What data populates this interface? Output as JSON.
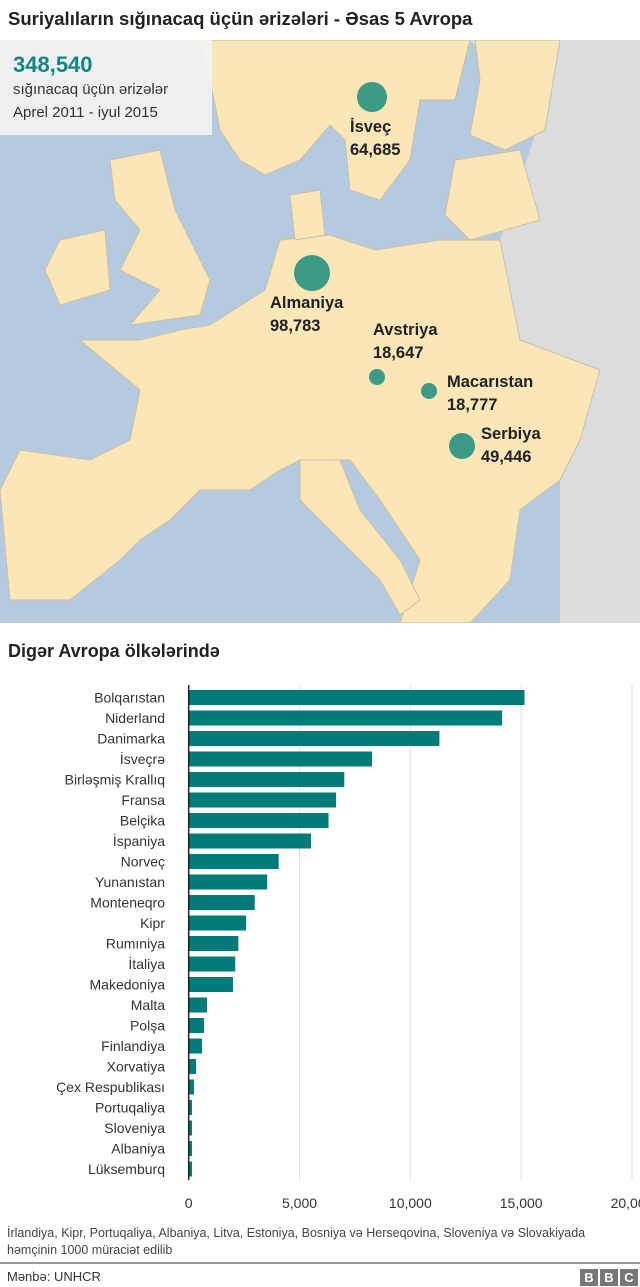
{
  "title": "Suriyalıların sığınacaq üçün ərizələri - Əsas 5 Avropa",
  "info": {
    "total": "348,540",
    "line1": "sığınacaq üçün ərizələr",
    "line2": "Aprel 2011 - iyul 2015"
  },
  "map_markers": [
    {
      "name": "İsveç",
      "value": "64,685",
      "count": 64685
    },
    {
      "name": "Almaniya",
      "value": "98,783",
      "count": 98783
    },
    {
      "name": "Avstriya",
      "value": "18,647",
      "count": 18647
    },
    {
      "name": "Macarıstan",
      "value": "18,777",
      "count": 18777
    },
    {
      "name": "Serbiya",
      "value": "49,446",
      "count": 49446
    }
  ],
  "colors": {
    "bar": "#007b77",
    "marker": "#3c9a85",
    "land": "#fbe6b8",
    "sea": "#b6cadf",
    "other": "#dcdcdc"
  },
  "section_title": "Digər Avropa ölkələrində",
  "chart_data": {
    "type": "bar",
    "orientation": "horizontal",
    "title": "Digər Avropa ölkələrində",
    "xlabel": "",
    "ylabel": "",
    "xlim": [
      0,
      20000
    ],
    "grid": true,
    "xticks": [
      "0",
      "5,000",
      "10,000",
      "15,000",
      "20,000"
    ],
    "categories": [
      "Bolqarıstan",
      "Niderland",
      "Danimarka",
      "İsveçrə",
      "Birləşmiş Krallıq",
      "Fransa",
      "Belçika",
      "İspaniya",
      "Norveç",
      "Yunanıstan",
      "Monteneqro",
      "Kipr",
      "Rumıniya",
      "İtaliya",
      "Makedoniya",
      "Malta",
      "Polşa",
      "Finlandiya",
      "Xorvatiya",
      "Çex Respublikası",
      "Portuqaliya",
      "Sloveniya",
      "Albaniya",
      "Lüksemburq"
    ],
    "values": [
      15150,
      14140,
      11310,
      8270,
      7020,
      6650,
      6310,
      5520,
      4060,
      3540,
      2980,
      2590,
      2240,
      2100,
      2000,
      830,
      690,
      600,
      330,
      240,
      150,
      150,
      150,
      150
    ]
  },
  "footnote": "İrlandiya, Kipr, Portuqaliya, Albaniya, Litva, Estoniya, Bosniya və Herseqovina, Sloveniya və Slovakiyada həmçinin 1000 müraciət edilib",
  "source": "Mənbə: UNHCR",
  "logo": [
    "B",
    "B",
    "C"
  ]
}
